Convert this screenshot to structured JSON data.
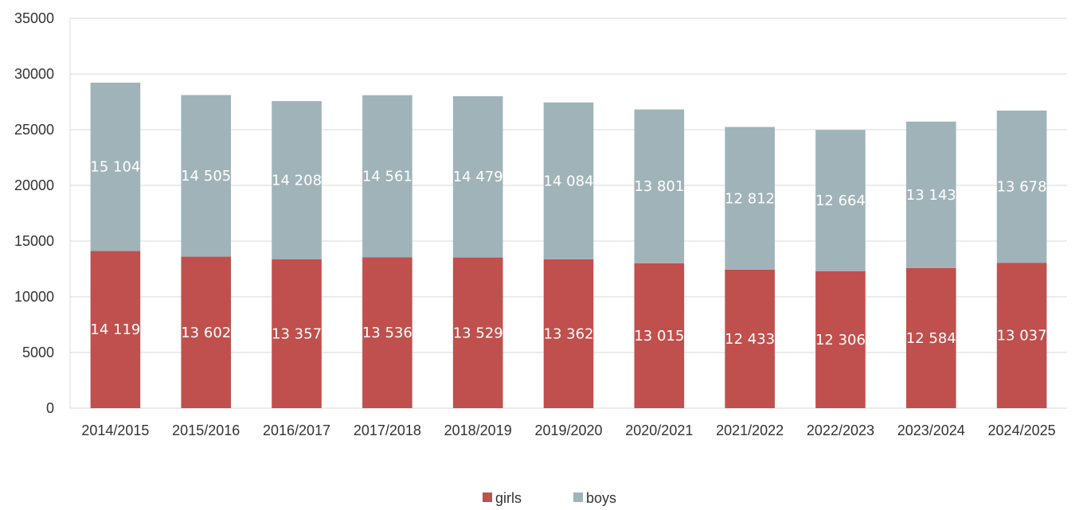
{
  "chart_data": {
    "type": "bar",
    "stacked": true,
    "categories": [
      "2014/2015",
      "2015/2016",
      "2016/2017",
      "2017/2018",
      "2018/2019",
      "2019/2020",
      "2020/2021",
      "2021/2022",
      "2022/2023",
      "2023/2024",
      "2024/2025"
    ],
    "series": [
      {
        "name": "girls",
        "color": "#c0504d",
        "values": [
          14119,
          13602,
          13357,
          13536,
          13529,
          13362,
          13015,
          12433,
          12306,
          12584,
          13037
        ],
        "labels": [
          "14 119",
          "13 602",
          "13 357",
          "13 536",
          "13 529",
          "13 362",
          "13 015",
          "12 433",
          "12 306",
          "12 584",
          "13 037"
        ]
      },
      {
        "name": "boys",
        "color": "#a0b3b9",
        "values": [
          15104,
          14505,
          14208,
          14561,
          14479,
          14084,
          13801,
          12812,
          12664,
          13143,
          13678
        ],
        "labels": [
          "15 104",
          "14 505",
          "14 208",
          "14 561",
          "14 479",
          "14 084",
          "13 801",
          "12 812",
          "12 664",
          "13 143",
          "13 678"
        ]
      }
    ],
    "ylim": [
      0,
      35000
    ],
    "yticks": [
      0,
      5000,
      10000,
      15000,
      20000,
      25000,
      30000,
      35000
    ],
    "ytick_labels": [
      "0",
      "5000",
      "10000",
      "15000",
      "20000",
      "25000",
      "30000",
      "35000"
    ],
    "grid": true,
    "legend_position": "bottom"
  }
}
